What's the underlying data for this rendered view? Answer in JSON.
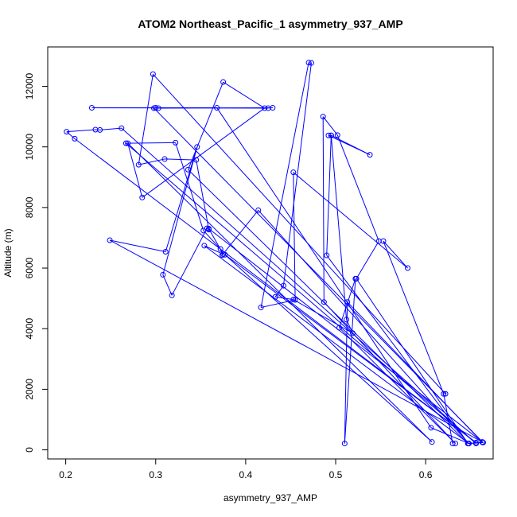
{
  "chart_data": {
    "type": "line",
    "title": "ATOM2 Northeast_Pacific_1 asymmetry_937_AMP",
    "xlabel": "asymmetry_937_AMP",
    "ylabel": "Altitude (m)",
    "xlim": [
      0.18,
      0.675
    ],
    "ylim": [
      -300,
      13300
    ],
    "xticks": [
      0.2,
      0.3,
      0.4,
      0.5,
      0.6
    ],
    "yticks": [
      0,
      2000,
      4000,
      6000,
      8000,
      10000,
      12000
    ],
    "colors": {
      "series": "#0000ff",
      "axis": "#000000"
    },
    "series": [
      {
        "marker": "open-circle",
        "x": [
          0.63,
          0.62,
          0.553,
          0.58,
          0.453,
          0.455,
          0.417,
          0.47,
          0.473,
          0.442,
          0.433,
          0.453,
          0.519,
          0.512,
          0.495,
          0.492,
          0.538,
          0.495,
          0.49,
          0.647,
          0.523,
          0.548,
          0.502,
          0.486,
          0.487,
          0.633,
          0.504,
          0.522,
          0.51,
          0.513,
          0.663,
          0.648,
          0.606,
          0.368,
          0.229,
          0.425,
          0.43,
          0.303,
          0.3,
          0.298,
          0.664,
          0.647,
          0.336,
          0.375,
          0.421,
          0.285,
          0.269,
          0.607,
          0.377,
          0.656,
          0.21,
          0.201,
          0.233,
          0.238,
          0.262,
          0.656,
          0.267,
          0.322,
          0.353,
          0.372,
          0.374,
          0.414,
          0.648,
          0.354,
          0.375,
          0.359,
          0.663,
          0.249,
          0.311,
          0.346,
          0.308,
          0.318,
          0.357,
          0.359,
          0.345,
          0.31,
          0.281,
          0.297,
          0.622
        ],
        "y": [
          210,
          1850,
          6890,
          6000,
          9160,
          4950,
          4700,
          12780,
          12770,
          5420,
          5050,
          4960,
          3850,
          4300,
          10380,
          10380,
          9740,
          10380,
          6420,
          210,
          5650,
          6890,
          10390,
          11000,
          4880,
          210,
          4030,
          5650,
          210,
          4880,
          250,
          210,
          730,
          11290,
          11290,
          11280,
          11290,
          11280,
          11290,
          11280,
          240,
          210,
          9250,
          12140,
          11280,
          8330,
          10120,
          260,
          6440,
          240,
          10270,
          10500,
          10570,
          10560,
          10620,
          210,
          10120,
          10140,
          7240,
          6630,
          6430,
          7910,
          210,
          6740,
          6460,
          7300,
          260,
          6920,
          6540,
          10000,
          5780,
          5100,
          7310,
          7270,
          9570,
          9600,
          9410,
          12400,
          1850
        ]
      }
    ]
  }
}
